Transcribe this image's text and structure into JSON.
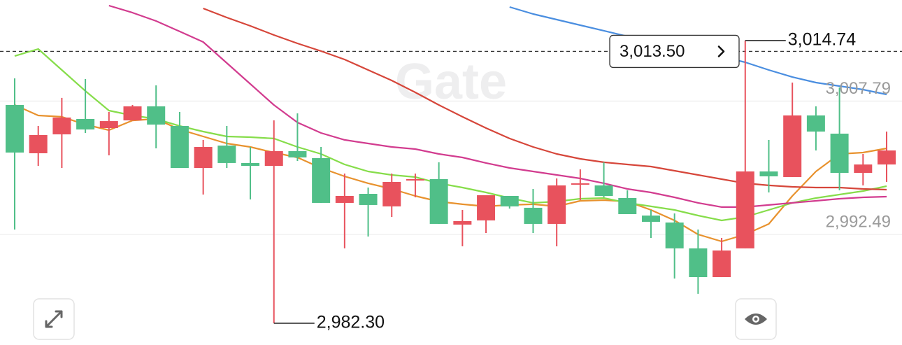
{
  "chart_data": {
    "type": "candlestick",
    "watermark": "Gate",
    "ylim": [
      2979.8,
      3019.4
    ],
    "yticks": [
      {
        "value": 3007.79,
        "label": "3,007.79"
      },
      {
        "value": 2992.49,
        "label": "2,992.49"
      }
    ],
    "grid": true,
    "up_color": "#e8525d",
    "down_color": "#50bf88",
    "open": [
      3007.35,
      3001.81,
      3003.98,
      3005.75,
      3004.7,
      3005.58,
      3007.19,
      3004.94,
      3000.12,
      3002.69,
      3000.69,
      3000.36,
      3002.05,
      3001.25,
      2996.11,
      2997.15,
      2995.71,
      2998.68,
      2998.84,
      2993.62,
      2994.1,
      2996.91,
      2995.55,
      2993.7,
      2998.2,
      2998.12,
      2996.67,
      2994.66,
      2993.86,
      2990.89,
      2987.59,
      2990.89,
      2999.72,
      2999.08,
      3006.15,
      3004.06,
      2999.56,
      3000.52
    ],
    "high": [
      3010.4,
      3004.94,
      3008.16,
      3010.32,
      3006.55,
      3007.35,
      3009.6,
      3006.55,
      3003.34,
      3004.94,
      3002.53,
      3005.58,
      3006.39,
      3002.53,
      2999.48,
      2997.87,
      2999.48,
      2999.48,
      3000.77,
      2995.3,
      2996.99,
      2996.91,
      2997.71,
      2998.92,
      2999.96,
      3000.77,
      2997.55,
      2995.3,
      2994.9,
      2993.05,
      2992.09,
      3014.74,
      3003.34,
      3009.92,
      3007.19,
      3009.36,
      3001.73,
      3004.3
    ],
    "low": [
      2993.05,
      3000.36,
      3000.12,
      3004.14,
      3001.57,
      3005.58,
      3002.37,
      3000.12,
      2997.07,
      3000.12,
      2996.51,
      2982.3,
      3000.93,
      2996.11,
      2990.89,
      2992.25,
      2994.5,
      2996.75,
      2993.7,
      2991.13,
      2992.65,
      2995.46,
      2992.65,
      2991.13,
      2996.43,
      2996.75,
      2994.82,
      2992.09,
      2987.43,
      2985.67,
      2987.59,
      2990.89,
      2997.31,
      2999.08,
      3002.13,
      2997.55,
      2998.12,
      2998.52
    ],
    "close": [
      3001.89,
      3003.9,
      3005.91,
      3004.54,
      3005.5,
      3007.19,
      3005.1,
      3000.12,
      3002.53,
      3000.69,
      3000.36,
      3002.05,
      3001.33,
      2996.11,
      2996.91,
      2995.87,
      2998.52,
      2998.84,
      2993.7,
      2994.02,
      2996.99,
      2995.71,
      2993.7,
      2998.12,
      2998.36,
      2996.91,
      2994.82,
      2993.94,
      2990.89,
      2987.59,
      2990.65,
      2999.72,
      2999.16,
      3006.15,
      3004.3,
      2999.56,
      3000.52,
      3002.13
    ],
    "lines": [
      {
        "color": "#e8922e",
        "values": [
          3007.35,
          3006.15,
          3005.99,
          3005.1,
          3004.46,
          3005.58,
          3005.75,
          3004.54,
          3003.74,
          3002.93,
          3002.53,
          3001.89,
          3001.33,
          3000.12,
          2999.16,
          2998.36,
          2997.71,
          2996.91,
          2996.27,
          2995.95,
          2995.71,
          2995.87,
          2995.95,
          2995.71,
          2996.35,
          2996.43,
          2996.27,
          2995.3,
          2994.1,
          2992.49,
          2991.69,
          2992.49,
          2993.7,
          2996.91,
          2999.72,
          3001.73,
          3001.89,
          3002.37
        ]
      },
      {
        "color": "#86dd4a",
        "values": [
          3012.97,
          3013.78,
          3011.37,
          3008.96,
          3006.71,
          3006.15,
          3005.75,
          3004.94,
          3004.3,
          3003.74,
          3003.66,
          3003.5,
          3002.53,
          3001.73,
          3000.52,
          2999.72,
          2999.32,
          2999.08,
          2998.36,
          2997.87,
          2997.31,
          2996.67,
          2996.11,
          2996.27,
          2996.59,
          2996.67,
          2996.11,
          2995.71,
          2995.3,
          2994.66,
          2994.1,
          2994.5,
          2995.3,
          2996.11,
          2996.67,
          2997.07,
          2997.47,
          2998.03
        ]
      },
      {
        "color": "#d23c8f",
        "values": [
          null,
          null,
          null,
          null,
          3018.76,
          3017.95,
          3016.99,
          3015.79,
          3014.58,
          3012.17,
          3009.76,
          3007.35,
          3005.34,
          3004.14,
          3003.34,
          3002.93,
          3002.53,
          3002.29,
          3001.73,
          3001.33,
          3000.69,
          3000.12,
          2999.72,
          2999.32,
          2998.92,
          2998.36,
          2997.71,
          2997.31,
          2996.75,
          2996.11,
          2995.63,
          2995.63,
          2995.87,
          2996.11,
          2996.35,
          2996.59,
          2996.75,
          2996.83
        ]
      },
      {
        "color": "#d6463a",
        "values": [
          null,
          null,
          null,
          null,
          null,
          null,
          null,
          null,
          3018.44,
          3017.39,
          3016.43,
          3015.38,
          3014.42,
          3013.54,
          3012.57,
          3011.37,
          3010.16,
          3008.8,
          3007.35,
          3005.99,
          3004.7,
          3003.5,
          3002.53,
          3001.73,
          3001.17,
          3000.77,
          3000.52,
          3000.28,
          2999.8,
          2999.32,
          2998.84,
          2998.36,
          2998.12,
          2997.95,
          2997.87,
          2997.87,
          2997.71,
          2997.63
        ]
      },
      {
        "color": "#4a8ee0",
        "values": [
          null,
          null,
          null,
          null,
          null,
          null,
          null,
          null,
          null,
          null,
          null,
          null,
          null,
          null,
          null,
          null,
          null,
          null,
          null,
          null,
          null,
          3018.6,
          3017.79,
          3017.15,
          3016.51,
          3015.87,
          3015.22,
          3014.58,
          3014.02,
          3013.46,
          3012.89,
          3012.25,
          3011.37,
          3010.56,
          3009.92,
          3009.52,
          3009.12,
          3008.56
        ]
      }
    ],
    "current_price": {
      "value": 3013.5,
      "label": "3,013.50"
    },
    "high_label": "3,014.74",
    "low_label": "2,982.30"
  }
}
